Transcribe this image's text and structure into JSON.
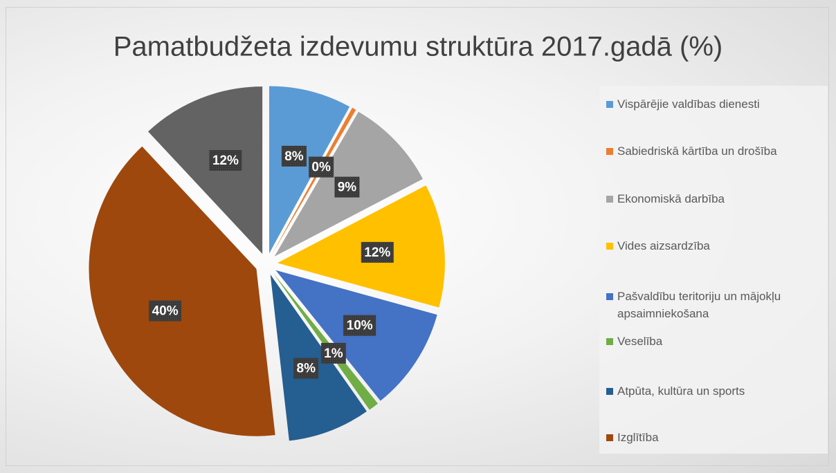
{
  "chart_data": {
    "type": "pie",
    "title": "Pamatbudžeta izdevumu struktūra 2017.gadā (%)",
    "categories": [
      "Vispārējie valdības dienesti",
      "Sabiedriskā kārtība un drošība",
      "Ekonomiskā darbība",
      "Vides aizsardzība",
      "Pašvaldību teritoriju un mājokļu apsaimniekošana",
      "Veselība",
      "Atpūta, kultūra un sports",
      "Izglītība",
      null
    ],
    "values": [
      8,
      0.4,
      9,
      12,
      10,
      1,
      8,
      40,
      12
    ],
    "value_labels": [
      "8%",
      "0%",
      "9%",
      "12%",
      "10%",
      "1%",
      "8%",
      "40%",
      "12%"
    ],
    "colors": [
      "#5b9bd5",
      "#ed7d31",
      "#a5a5a5",
      "#ffc000",
      "#4472c4",
      "#70ad47",
      "#255e91",
      "#9e480e",
      "#636363"
    ],
    "legend": "right"
  }
}
